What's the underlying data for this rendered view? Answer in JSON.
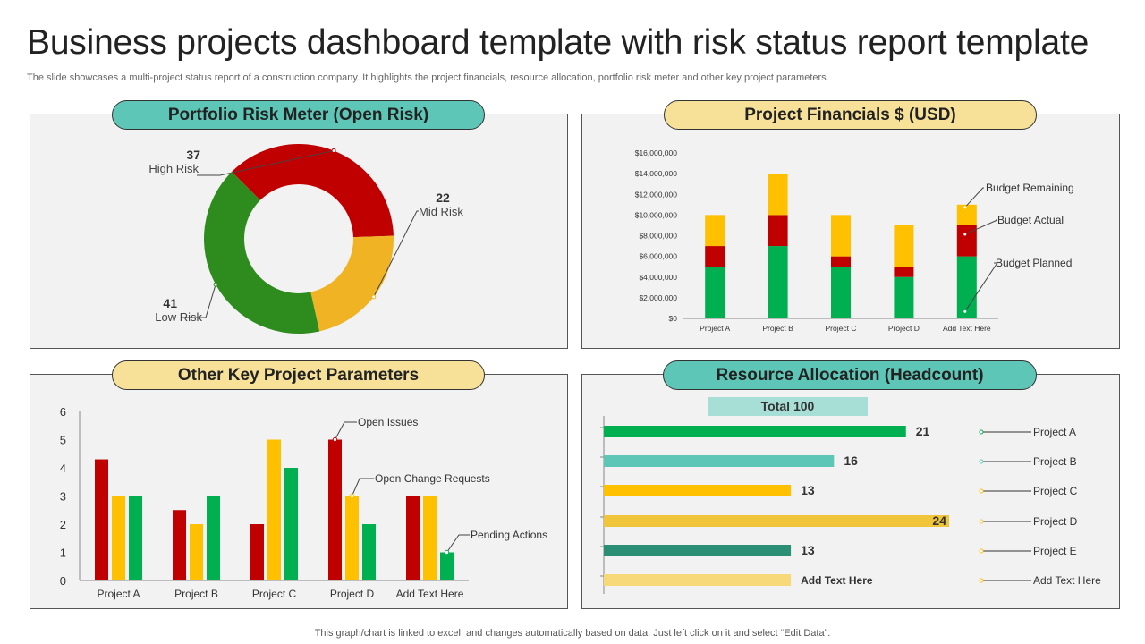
{
  "title": "Business projects dashboard template with risk status report template",
  "subtitle": "The slide showcases a multi-project status report of a construction company. It highlights the project financials, resource allocation, portfolio risk meter and other key project parameters.",
  "footer": "This graph/chart is linked to excel,  and changes automatically based on data. Just left click on it and select “Edit Data”.",
  "colors": {
    "red": "#c00000",
    "yellow": "#ffc000",
    "green": "#00b050",
    "teal": "#5ec6b6",
    "panel": "#f2f2f2"
  },
  "panels": {
    "risk": "Portfolio Risk Meter (Open Risk)",
    "financials": "Project Financials $ (USD)",
    "params": "Other Key Project Parameters",
    "resource": "Resource Allocation (Headcount)"
  },
  "chart_data": [
    {
      "id": "risk",
      "type": "pie",
      "variant": "donut",
      "slices": [
        {
          "label": "High Risk",
          "value": 37,
          "color": "#c00000"
        },
        {
          "label": "Mid Risk",
          "value": 22,
          "color": "#f0b323"
        },
        {
          "label": "Low Risk",
          "value": 41,
          "color": "#2e8b1e"
        }
      ]
    },
    {
      "id": "financials",
      "type": "bar",
      "stacked": true,
      "categories": [
        "Project A",
        "Project B",
        "Project C",
        "Project D",
        "Add Text Here"
      ],
      "series": [
        {
          "name": "Budget Planned",
          "color": "#00b050",
          "values": [
            5000000,
            7000000,
            5000000,
            4000000,
            6000000
          ]
        },
        {
          "name": "Budget Actual",
          "color": "#c00000",
          "values": [
            2000000,
            3000000,
            1000000,
            1000000,
            3000000
          ]
        },
        {
          "name": "Budget Remaining",
          "color": "#ffc000",
          "values": [
            3000000,
            4000000,
            4000000,
            4000000,
            2000000
          ]
        }
      ],
      "yticks": [
        "$0",
        "$2,000,000",
        "$4,000,000",
        "$6,000,000",
        "$8,000,000",
        "$10,000,000",
        "$12,000,000",
        "$14,000,000",
        "$16,000,000"
      ],
      "ylim": [
        0,
        16000000
      ],
      "grid": false
    },
    {
      "id": "params",
      "type": "bar",
      "categories": [
        "Project A",
        "Project B",
        "Project C",
        "Project D",
        "Add Text Here"
      ],
      "series": [
        {
          "name": "Open Issues",
          "color": "#c00000",
          "values": [
            4.3,
            2.5,
            2,
            5,
            3
          ]
        },
        {
          "name": "Open Change Requests",
          "color": "#ffc000",
          "values": [
            3,
            2,
            5,
            3,
            3
          ]
        },
        {
          "name": "Pending Actions",
          "color": "#00b050",
          "values": [
            3,
            3,
            4,
            2,
            1
          ]
        }
      ],
      "yticks": [
        "0",
        "1",
        "2",
        "3",
        "4",
        "5",
        "6"
      ],
      "ylim": [
        0,
        6
      ],
      "grid": false
    },
    {
      "id": "resource",
      "type": "bar",
      "orientation": "horizontal",
      "total_label": "Total 100",
      "bars": [
        {
          "label": "Project A",
          "value": 21,
          "value_label": "21",
          "color": "#00b050",
          "dot": "#00b050"
        },
        {
          "label": "Project B",
          "value": 16,
          "value_label": "16",
          "color": "#5ec6b6",
          "dot": "#5ec6b6"
        },
        {
          "label": "Project C",
          "value": 13,
          "value_label": "13",
          "color": "#ffc000",
          "dot": "#ffc000"
        },
        {
          "label": "Project D",
          "value": 24,
          "value_label": "24",
          "color": "#f0c53a",
          "dot": "#f0c53a"
        },
        {
          "label": "Project E",
          "value": 13,
          "value_label": "13",
          "color": "#2a8f75",
          "dot": "#ffc000"
        },
        {
          "label": "Add Text Here",
          "value": 13,
          "value_label": "Add  Text Here",
          "color": "#f7d97a",
          "dot": "#ffc000"
        }
      ],
      "xlim": [
        0,
        24
      ]
    }
  ]
}
